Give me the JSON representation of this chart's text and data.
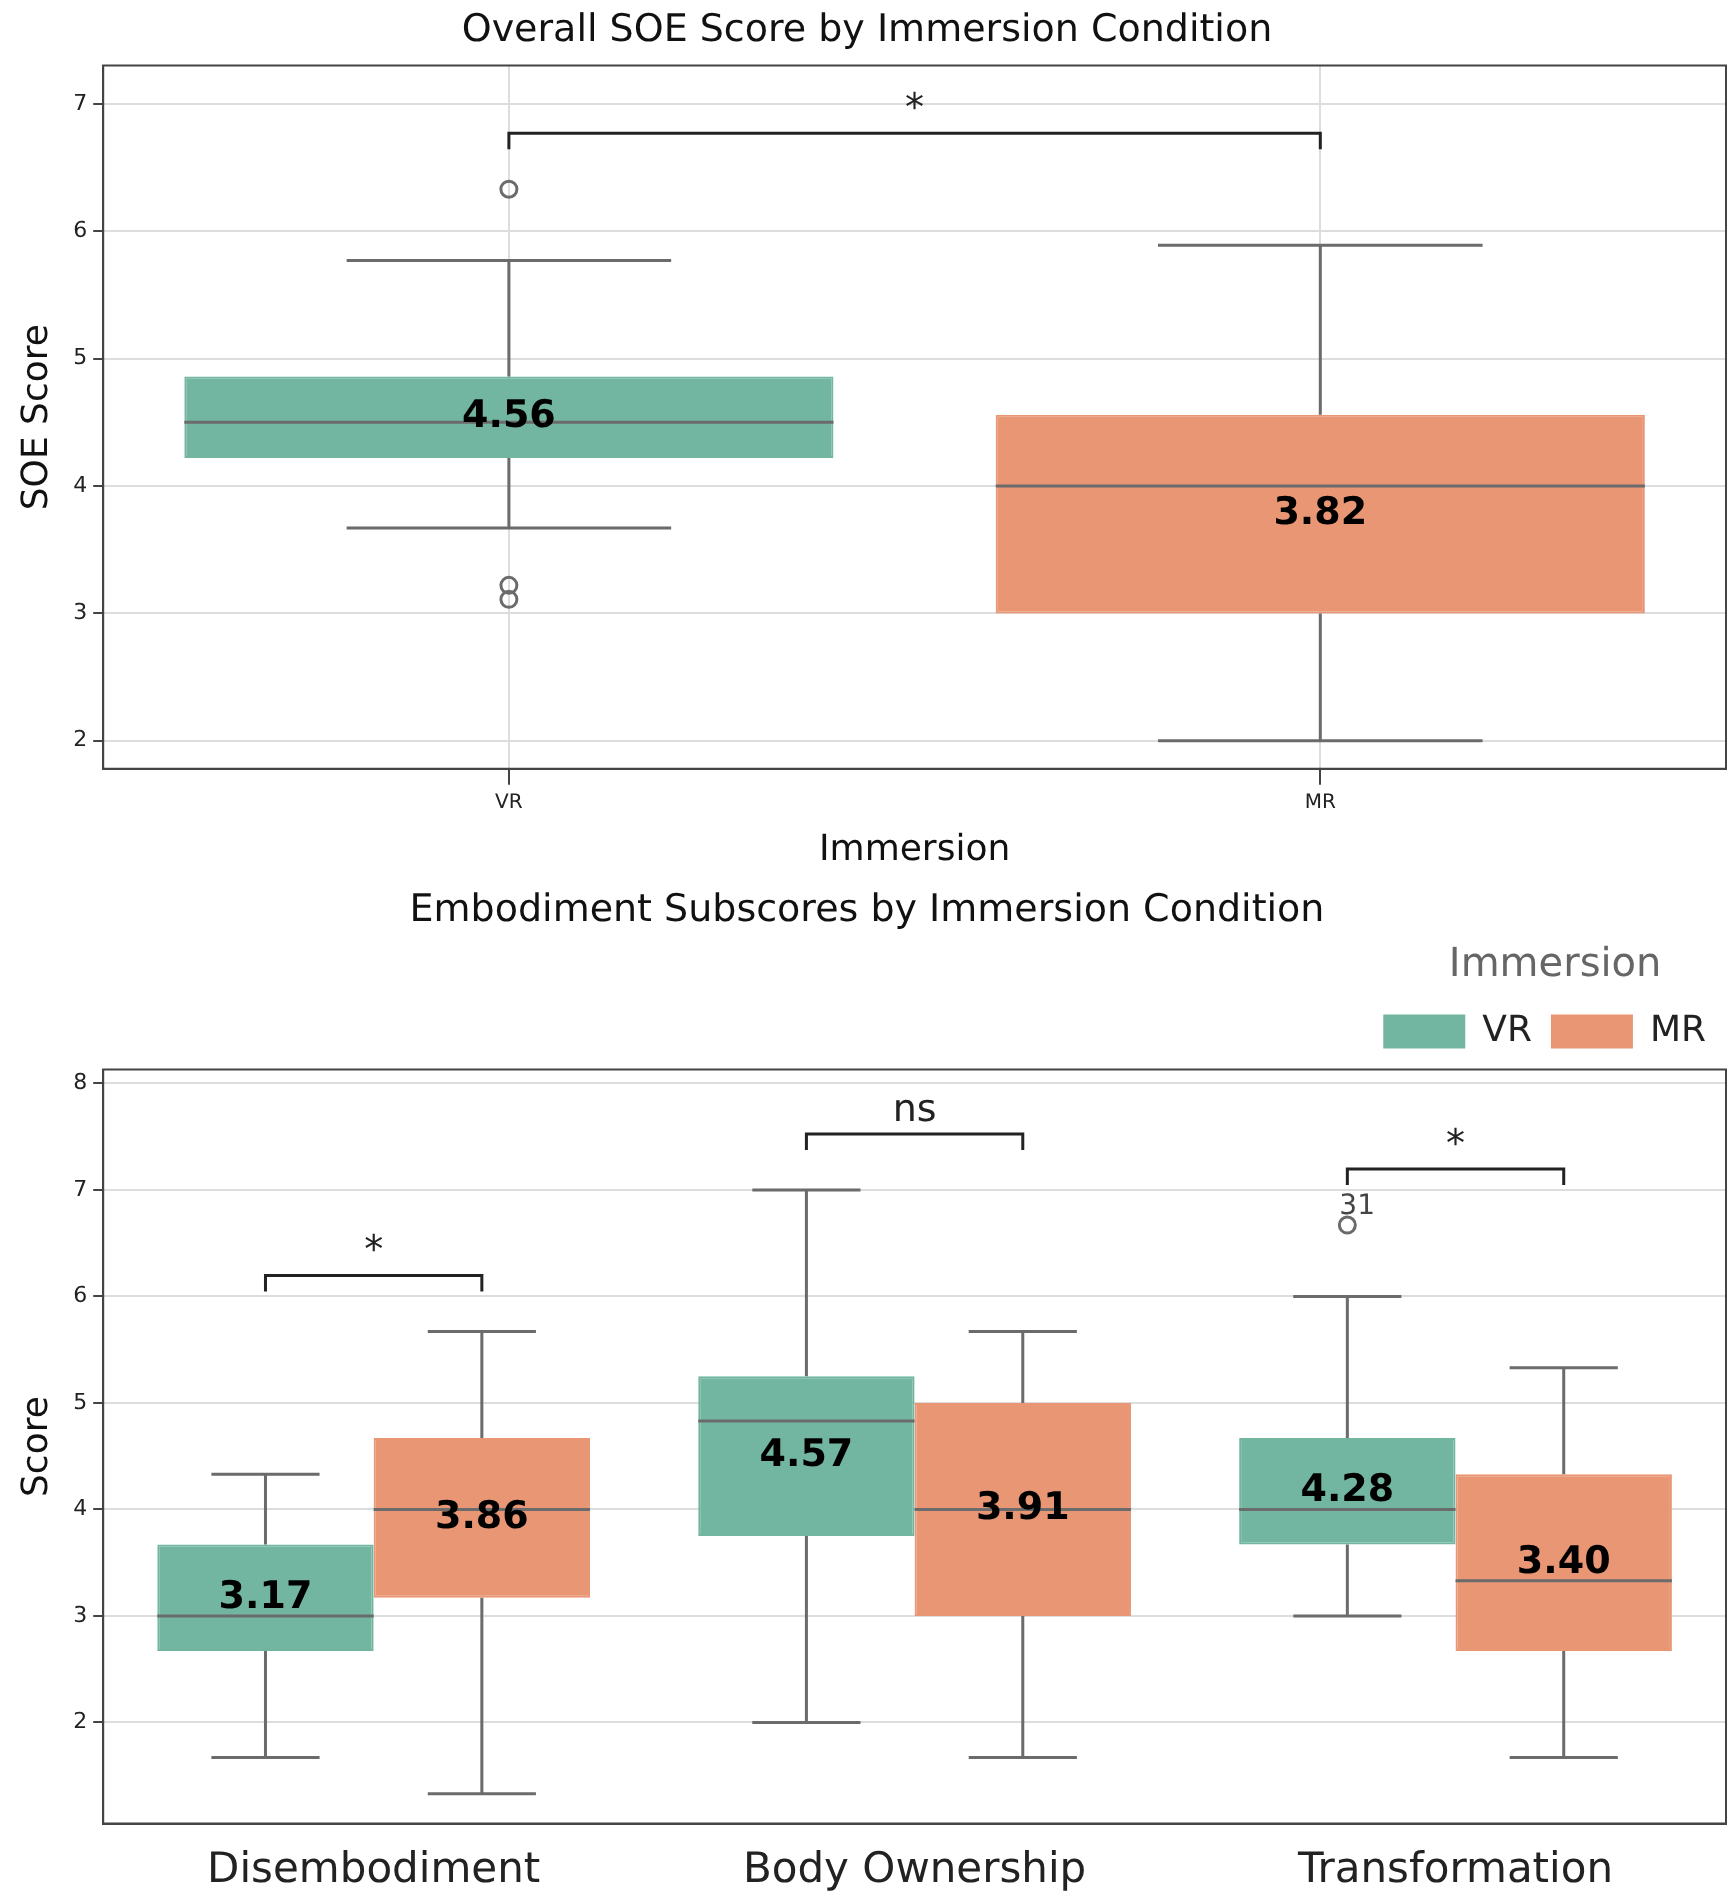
{
  "chart_data": [
    {
      "type": "box",
      "title": "Overall SOE Score by Immersion Condition",
      "xlabel": "Immersion",
      "ylabel": "SOE Score",
      "categories": [
        "VR",
        "MR"
      ],
      "colors": [
        "#72b6a1",
        "#e99675"
      ],
      "boxes": [
        {
          "low": 3.67,
          "q1": 4.22,
          "median": 4.5,
          "q3": 4.86,
          "high": 5.77,
          "outliers": [
            6.33,
            3.22,
            3.11
          ]
        },
        {
          "low": 2.0,
          "q1": 3.0,
          "median": 4.0,
          "q3": 4.56,
          "high": 5.89
        }
      ],
      "value_labels": [
        "4.56",
        "3.82"
      ],
      "ylim": [
        1.78,
        7.3
      ],
      "yticks": [
        2,
        3,
        4,
        5,
        6,
        7
      ],
      "grid": true,
      "annotations": [
        "*"
      ]
    },
    {
      "type": "box",
      "title": "Embodiment Subscores by Immersion Condition",
      "ylabel": "Score",
      "legend_title": "Immersion",
      "legend": "top right",
      "categories": [
        "Disembodiment",
        "Body Ownership",
        "Transformation"
      ],
      "series": [
        {
          "name": "VR",
          "color": "#72b6a1",
          "boxes": [
            {
              "low": 1.67,
              "q1": 2.67,
              "median": 3.0,
              "q3": 3.67,
              "high": 4.33
            },
            {
              "low": 2.0,
              "q1": 3.75,
              "median": 4.83,
              "q3": 5.25,
              "high": 7.0
            },
            {
              "low": 3.0,
              "q1": 3.67,
              "median": 4.0,
              "q3": 4.67,
              "high": 6.0,
              "outliers": [
                6.67
              ]
            }
          ],
          "value_labels": [
            "3.17",
            "4.57",
            "4.28"
          ]
        },
        {
          "name": "MR",
          "color": "#e99675",
          "boxes": [
            {
              "low": 1.33,
              "q1": 3.17,
              "median": 4.0,
              "q3": 4.67,
              "high": 5.67
            },
            {
              "low": 1.67,
              "q1": 3.0,
              "median": 4.0,
              "q3": 5.0,
              "high": 5.67
            },
            {
              "low": 1.67,
              "q1": 2.67,
              "median": 3.33,
              "q3": 4.33,
              "high": 5.33
            }
          ],
          "value_labels": [
            "3.86",
            "3.91",
            "3.40"
          ]
        }
      ],
      "ylim": [
        1.05,
        8.13
      ],
      "yticks": [
        2,
        3,
        4,
        5,
        6,
        7,
        8
      ],
      "grid": "y",
      "annotations": [
        "*",
        "ns",
        "*",
        "31"
      ]
    }
  ]
}
